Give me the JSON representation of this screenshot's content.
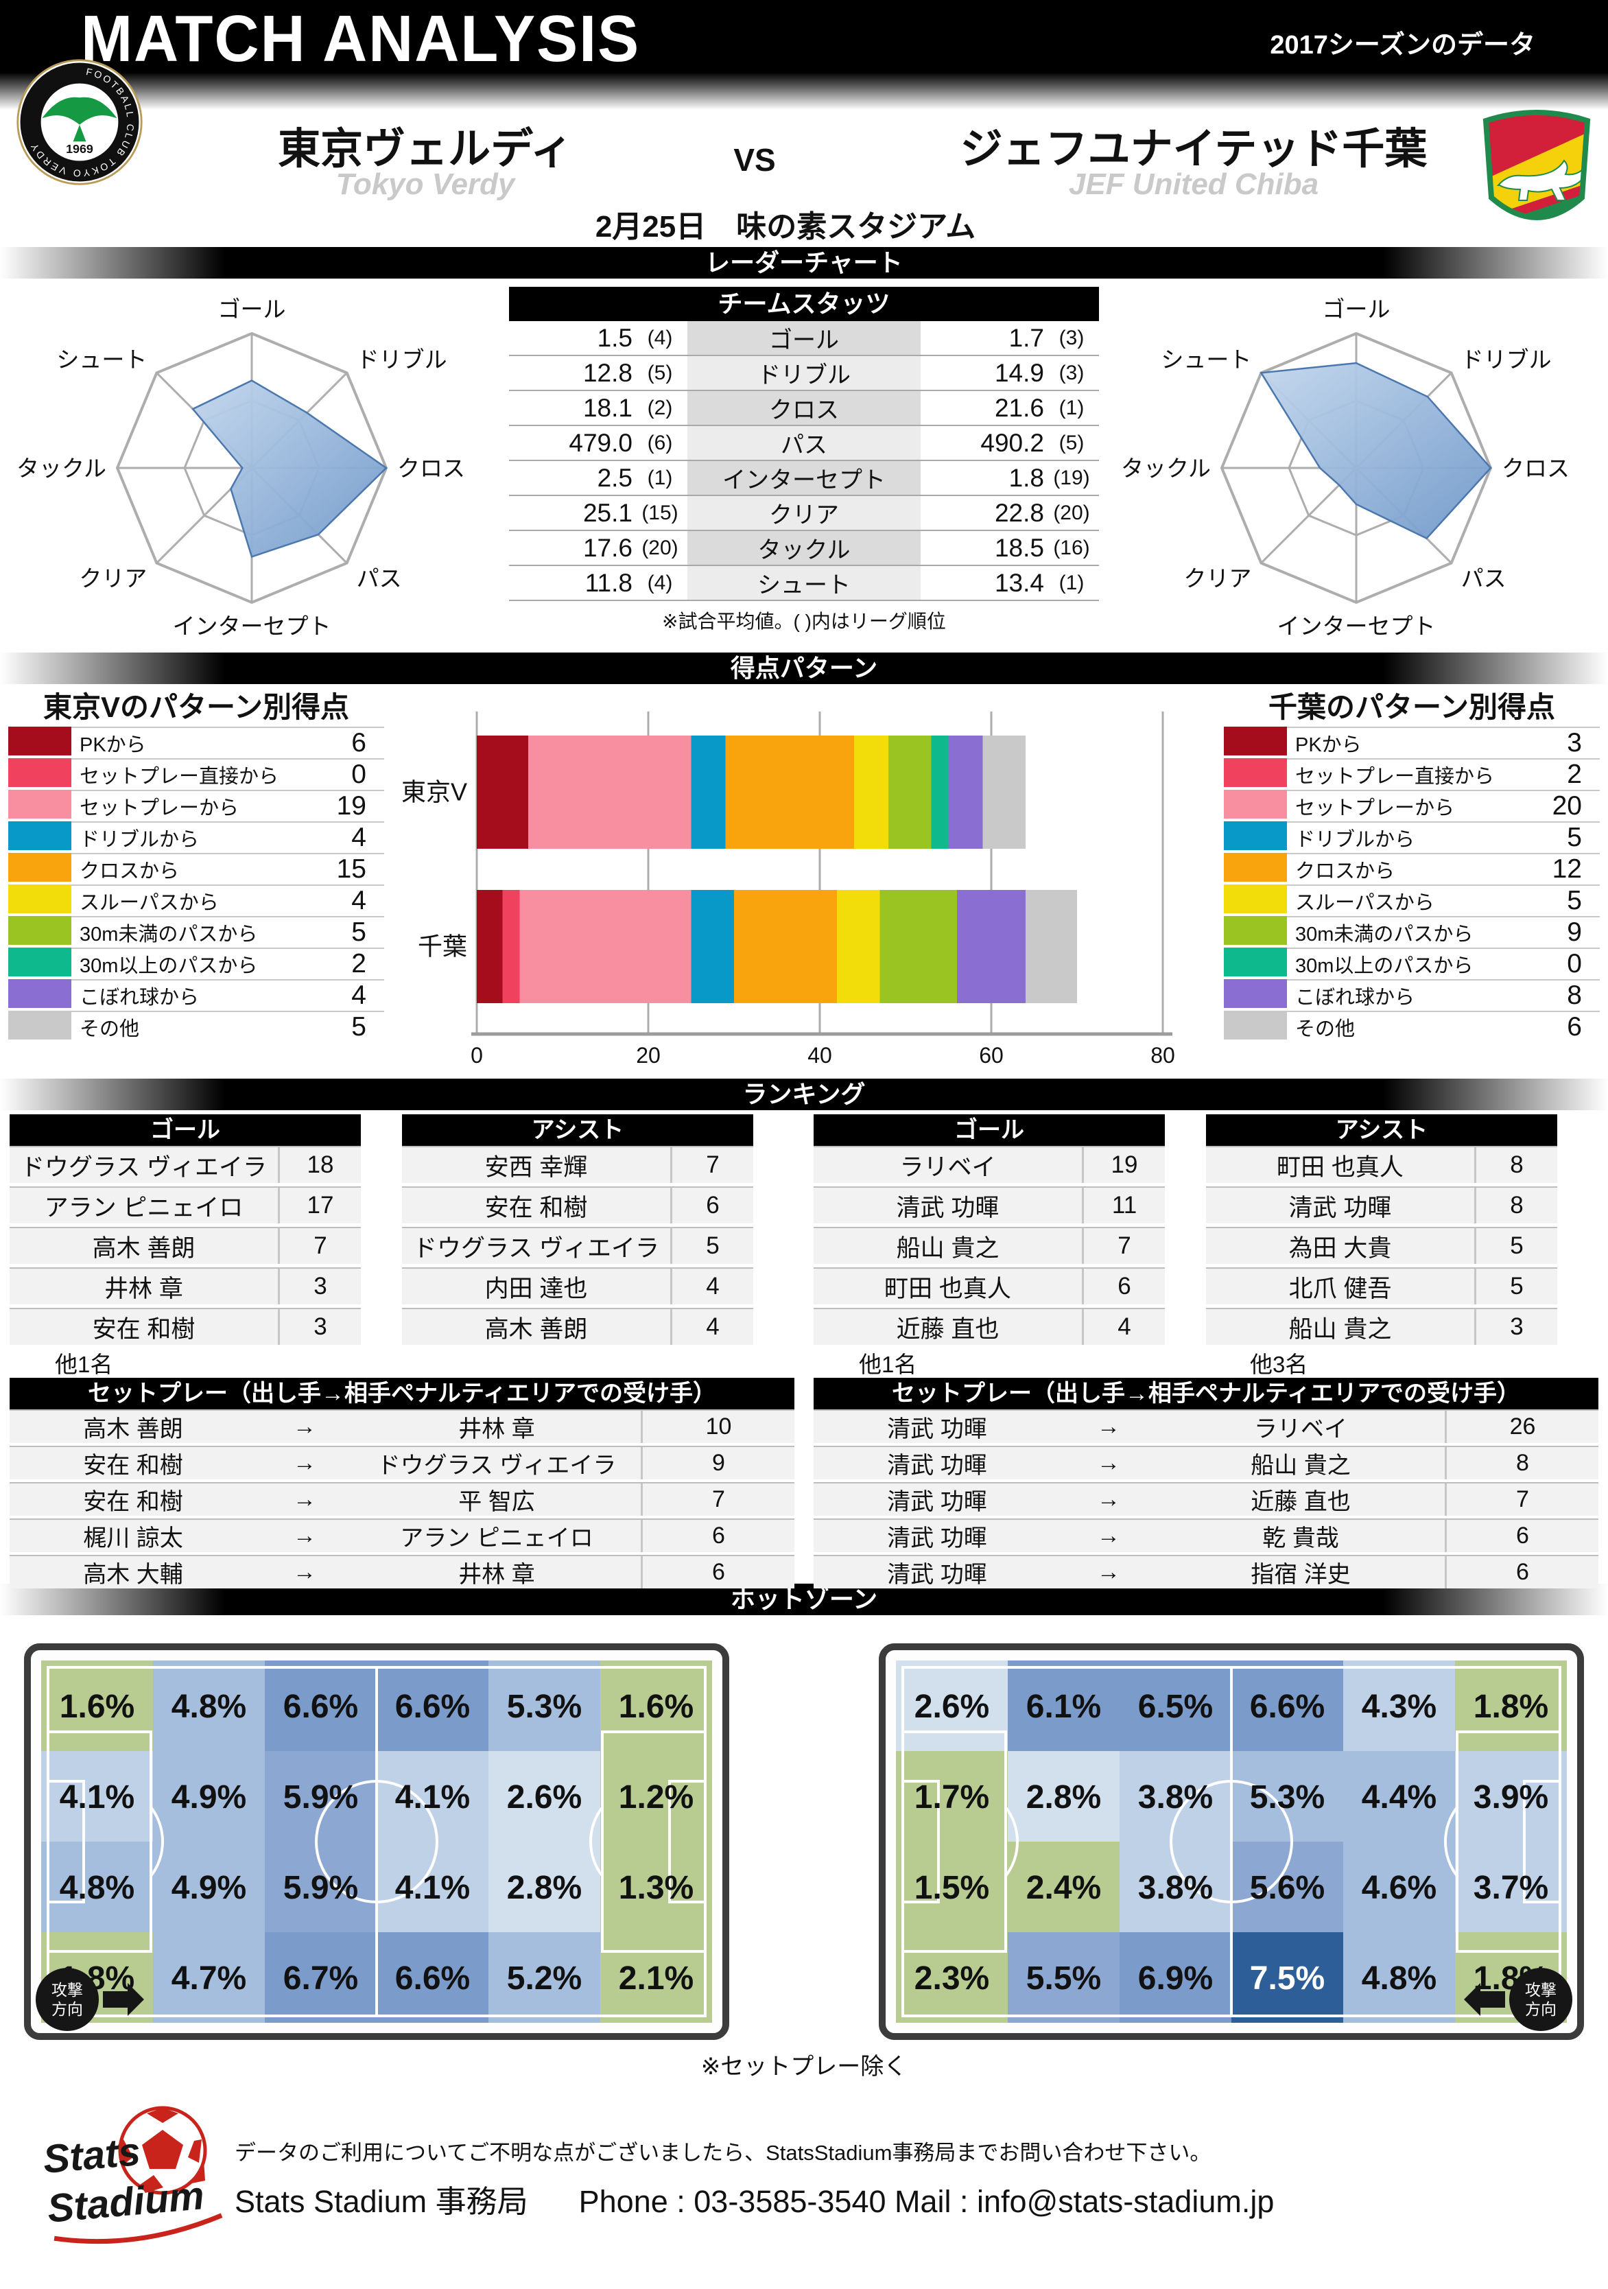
{
  "header": {
    "title": "MATCH ANALYSIS",
    "season_note": "2017シーズンのデータ"
  },
  "match": {
    "home": {
      "name": "東京ヴェルディ",
      "name_en": "Tokyo Verdy"
    },
    "away": {
      "name": "ジェフユナイテッド千葉",
      "name_en": "JEF United Chiba"
    },
    "vs": "VS",
    "date_venue": "2月25日　味の素スタジアム"
  },
  "sections": {
    "radar": "レーダーチャート",
    "scoring": "得点パターン",
    "ranking": "ランキング",
    "hotzone": "ホットゾーン"
  },
  "team_stats": {
    "title": "チームスタッツ",
    "note": "※試合平均値。( )内はリーグ順位",
    "rows": [
      {
        "stat": "ゴール",
        "home": "1.5",
        "home_rank": "(4)",
        "away": "1.7",
        "away_rank": "(3)"
      },
      {
        "stat": "ドリブル",
        "home": "12.8",
        "home_rank": "(5)",
        "away": "14.9",
        "away_rank": "(3)"
      },
      {
        "stat": "クロス",
        "home": "18.1",
        "home_rank": "(2)",
        "away": "21.6",
        "away_rank": "(1)"
      },
      {
        "stat": "パス",
        "home": "479.0",
        "home_rank": "(6)",
        "away": "490.2",
        "away_rank": "(5)"
      },
      {
        "stat": "インターセプト",
        "home": "2.5",
        "home_rank": "(1)",
        "away": "1.8",
        "away_rank": "(19)"
      },
      {
        "stat": "クリア",
        "home": "25.1",
        "home_rank": "(15)",
        "away": "22.8",
        "away_rank": "(20)"
      },
      {
        "stat": "タックル",
        "home": "17.6",
        "home_rank": "(20)",
        "away": "18.5",
        "away_rank": "(16)"
      },
      {
        "stat": "シュート",
        "home": "11.8",
        "home_rank": "(4)",
        "away": "13.4",
        "away_rank": "(1)"
      }
    ]
  },
  "radar": {
    "axes": [
      "ゴール",
      "ドリブル",
      "クロス",
      "パス",
      "インターセプト",
      "クリア",
      "タックル",
      "シュート"
    ],
    "home_values": [
      0.65,
      0.58,
      1.0,
      0.7,
      0.66,
      0.22,
      0.07,
      0.62
    ],
    "away_values": [
      0.78,
      0.75,
      1.0,
      0.74,
      0.27,
      0.18,
      0.27,
      1.0
    ]
  },
  "scoring": {
    "home_title": "東京Vのパターン別得点",
    "away_title": "千葉のパターン別得点",
    "bar_labels": {
      "home": "東京V",
      "away": "千葉"
    },
    "xticks": [
      0,
      20,
      40,
      60,
      80
    ],
    "patterns": [
      {
        "label": "PKから",
        "color": "#A50D1C",
        "home": 6,
        "away": 3
      },
      {
        "label": "セットプレー直接から",
        "color": "#F0415E",
        "home": 0,
        "away": 2
      },
      {
        "label": "セットプレーから",
        "color": "#F78FA0",
        "home": 19,
        "away": 20
      },
      {
        "label": "ドリブルから",
        "color": "#0899C9",
        "home": 4,
        "away": 5
      },
      {
        "label": "クロスから",
        "color": "#F9A40D",
        "home": 15,
        "away": 12
      },
      {
        "label": "スルーパスから",
        "color": "#F2DC0A",
        "home": 4,
        "away": 5
      },
      {
        "label": "30m未満のパスから",
        "color": "#9AC421",
        "home": 5,
        "away": 9
      },
      {
        "label": "30m以上のパスから",
        "color": "#0EB98E",
        "home": 2,
        "away": 0
      },
      {
        "label": "こぼれ球から",
        "color": "#8A6ED1",
        "home": 4,
        "away": 8
      },
      {
        "label": "その他",
        "color": "#C9C9C9",
        "home": 5,
        "away": 6
      }
    ]
  },
  "ranking": {
    "home": {
      "goal": {
        "title": "ゴール",
        "note": "他1名",
        "rows": [
          {
            "name": "ドウグラス ヴィエイラ",
            "value": 18
          },
          {
            "name": "アラン ピニェイロ",
            "value": 17
          },
          {
            "name": "高木 善朗",
            "value": 7
          },
          {
            "name": "井林 章",
            "value": 3
          },
          {
            "name": "安在 和樹",
            "value": 3
          }
        ]
      },
      "assist": {
        "title": "アシスト",
        "note": "",
        "rows": [
          {
            "name": "安西 幸輝",
            "value": 7
          },
          {
            "name": "安在 和樹",
            "value": 6
          },
          {
            "name": "ドウグラス ヴィエイラ",
            "value": 5
          },
          {
            "name": "内田 達也",
            "value": 4
          },
          {
            "name": "高木 善朗",
            "value": 4
          }
        ]
      }
    },
    "away": {
      "goal": {
        "title": "ゴール",
        "note": "他1名",
        "rows": [
          {
            "name": "ラリベイ",
            "value": 19
          },
          {
            "name": "清武 功暉",
            "value": 11
          },
          {
            "name": "船山 貴之",
            "value": 7
          },
          {
            "name": "町田 也真人",
            "value": 6
          },
          {
            "name": "近藤 直也",
            "value": 4
          }
        ]
      },
      "assist": {
        "title": "アシスト",
        "note": "他3名",
        "rows": [
          {
            "name": "町田 也真人",
            "value": 8
          },
          {
            "name": "清武 功暉",
            "value": 8
          },
          {
            "name": "為田 大貴",
            "value": 5
          },
          {
            "name": "北爪 健吾",
            "value": 5
          },
          {
            "name": "船山 貴之",
            "value": 3
          }
        ]
      }
    }
  },
  "setplay": {
    "arrow": "→",
    "home": {
      "title": "セットプレー（出し手→相手ペナルティエリアでの受け手）",
      "rows": [
        {
          "from": "高木 善朗",
          "to": "井林 章",
          "value": 10
        },
        {
          "from": "安在 和樹",
          "to": "ドウグラス ヴィエイラ",
          "value": 9
        },
        {
          "from": "安在 和樹",
          "to": "平 智広",
          "value": 7
        },
        {
          "from": "梶川 諒太",
          "to": "アラン ピニェイロ",
          "value": 6
        },
        {
          "from": "高木 大輔",
          "to": "井林 章",
          "value": 6
        }
      ]
    },
    "away": {
      "title": "セットプレー（出し手→相手ペナルティエリアでの受け手）",
      "rows": [
        {
          "from": "清武 功暉",
          "to": "ラリベイ",
          "value": 26
        },
        {
          "from": "清武 功暉",
          "to": "船山 貴之",
          "value": 8
        },
        {
          "from": "清武 功暉",
          "to": "近藤 直也",
          "value": 7
        },
        {
          "from": "清武 功暉",
          "to": "乾 貴哉",
          "value": 6
        },
        {
          "from": "清武 功暉",
          "to": "指宿 洋史",
          "value": 6
        }
      ]
    }
  },
  "hotzones": {
    "note": "※セットプレー除く",
    "attack_label_1": "攻撃",
    "attack_label_2": "方向",
    "home": {
      "attack": "right",
      "values": [
        [
          1.6,
          4.8,
          6.6,
          6.6,
          5.3,
          1.6
        ],
        [
          4.1,
          4.9,
          5.9,
          4.1,
          2.6,
          1.2
        ],
        [
          4.8,
          4.9,
          5.9,
          4.1,
          2.8,
          1.3
        ],
        [
          1.8,
          4.7,
          6.7,
          6.6,
          5.2,
          2.1
        ]
      ],
      "green": [
        [
          0,
          0
        ],
        [
          0,
          5
        ],
        [
          1,
          5
        ],
        [
          2,
          5
        ],
        [
          3,
          0
        ],
        [
          3,
          5
        ]
      ]
    },
    "away": {
      "attack": "left",
      "values": [
        [
          2.6,
          6.1,
          6.5,
          6.6,
          4.3,
          1.8
        ],
        [
          1.7,
          2.8,
          3.8,
          5.3,
          4.4,
          3.9
        ],
        [
          1.5,
          2.4,
          3.8,
          5.6,
          4.6,
          3.7
        ],
        [
          2.3,
          5.5,
          6.9,
          7.5,
          4.8,
          1.8
        ]
      ],
      "green": [
        [
          0,
          5
        ],
        [
          1,
          0
        ],
        [
          2,
          0
        ],
        [
          2,
          1
        ],
        [
          3,
          0
        ],
        [
          3,
          5
        ]
      ]
    }
  },
  "heat_scale": [
    {
      "min": 7.2,
      "color": "#2E5E97",
      "white": true
    },
    {
      "min": 6.0,
      "color": "#7B9CCB"
    },
    {
      "min": 5.4,
      "color": "#8CA8D2"
    },
    {
      "min": 4.4,
      "color": "#A6BEDD"
    },
    {
      "min": 3.4,
      "color": "#BFD1E7"
    },
    {
      "min": 2.4,
      "color": "#D2E0EE"
    },
    {
      "min": 0,
      "color": "#DEE8F2"
    }
  ],
  "colors": {
    "heat_green": "#B8CC92",
    "radar_fill_light": "#C2D6EC",
    "radar_fill_deep": "#6E97C9",
    "radar_stroke": "#4A77AE",
    "radar_grid": "#ADADAD",
    "verdy_green": "#159A43",
    "jef_red": "#D2203B",
    "jef_yellow": "#F5D10C",
    "jef_green": "#1F8A4C",
    "logo_red": "#C8241B"
  },
  "logos": {
    "verdy_ring_text": "FOOTBALL CLUB TOKYO VERDY",
    "verdy_year": "1969"
  },
  "footer": {
    "line1": "データのご利用についてご不明な点がございましたら、StatsStadium事務局までお問い合わせ下さい。",
    "office": "Stats Stadium 事務局",
    "contact": "Phone : 03-3585-3540  Mail : info@stats-stadium.jp",
    "logo_line1": "Stats",
    "logo_line2": "Stadium"
  },
  "chart_data": [
    {
      "type": "radar",
      "title": "レーダーチャート（東京V）",
      "categories": [
        "ゴール",
        "ドリブル",
        "クロス",
        "パス",
        "インターセプト",
        "クリア",
        "タックル",
        "シュート"
      ],
      "values": [
        0.65,
        0.58,
        1.0,
        0.7,
        0.66,
        0.22,
        0.07,
        0.62
      ],
      "rmax": 1,
      "grid": "octagon, inner ring at 0.5"
    },
    {
      "type": "radar",
      "title": "レーダーチャート（千葉）",
      "categories": [
        "ゴール",
        "ドリブル",
        "クロス",
        "パス",
        "インターセプト",
        "クリア",
        "タックル",
        "シュート"
      ],
      "values": [
        0.78,
        0.75,
        1.0,
        0.74,
        0.27,
        0.18,
        0.27,
        1.0
      ],
      "rmax": 1,
      "grid": "octagon, inner ring at 0.5"
    },
    {
      "type": "bar",
      "stacked": true,
      "orientation": "horizontal",
      "title": "得点パターン",
      "categories": [
        "東京V",
        "千葉"
      ],
      "xlim": [
        0,
        80
      ],
      "xticks": [
        0,
        20,
        40,
        60,
        80
      ],
      "grid": true,
      "series": [
        {
          "name": "PKから",
          "color": "#A50D1C",
          "values": [
            6,
            3
          ]
        },
        {
          "name": "セットプレー直接から",
          "color": "#F0415E",
          "values": [
            0,
            2
          ]
        },
        {
          "name": "セットプレーから",
          "color": "#F78FA0",
          "values": [
            19,
            20
          ]
        },
        {
          "name": "ドリブルから",
          "color": "#0899C9",
          "values": [
            4,
            5
          ]
        },
        {
          "name": "クロスから",
          "color": "#F9A40D",
          "values": [
            15,
            12
          ]
        },
        {
          "name": "スルーパスから",
          "color": "#F2DC0A",
          "values": [
            4,
            5
          ]
        },
        {
          "name": "30m未満のパスから",
          "color": "#9AC421",
          "values": [
            5,
            9
          ]
        },
        {
          "name": "30m以上のパスから",
          "color": "#0EB98E",
          "values": [
            2,
            0
          ]
        },
        {
          "name": "こぼれ球から",
          "color": "#8A6ED1",
          "values": [
            4,
            8
          ]
        },
        {
          "name": "その他",
          "color": "#C9C9C9",
          "values": [
            5,
            6
          ]
        }
      ],
      "legend_position": "both sides as tables with totals"
    },
    {
      "type": "heatmap",
      "title": "ホットゾーン（東京V）",
      "unit": "%",
      "rows": 4,
      "cols": 6,
      "values": [
        [
          1.6,
          4.8,
          6.6,
          6.6,
          5.3,
          1.6
        ],
        [
          4.1,
          4.9,
          5.9,
          4.1,
          2.6,
          1.2
        ],
        [
          4.8,
          4.9,
          5.9,
          4.1,
          2.8,
          1.3
        ],
        [
          1.8,
          4.7,
          6.7,
          6.6,
          5.2,
          2.1
        ]
      ],
      "annotation": "攻撃方向 → (bottom-left)"
    },
    {
      "type": "heatmap",
      "title": "ホットゾーン（千葉）",
      "unit": "%",
      "rows": 4,
      "cols": 6,
      "values": [
        [
          2.6,
          6.1,
          6.5,
          6.6,
          4.3,
          1.8
        ],
        [
          1.7,
          2.8,
          3.8,
          5.3,
          4.4,
          3.9
        ],
        [
          1.5,
          2.4,
          3.8,
          5.6,
          4.6,
          3.7
        ],
        [
          2.3,
          5.5,
          6.9,
          7.5,
          4.8,
          1.8
        ]
      ],
      "annotation": "攻撃方向 ← (bottom-right)"
    }
  ]
}
